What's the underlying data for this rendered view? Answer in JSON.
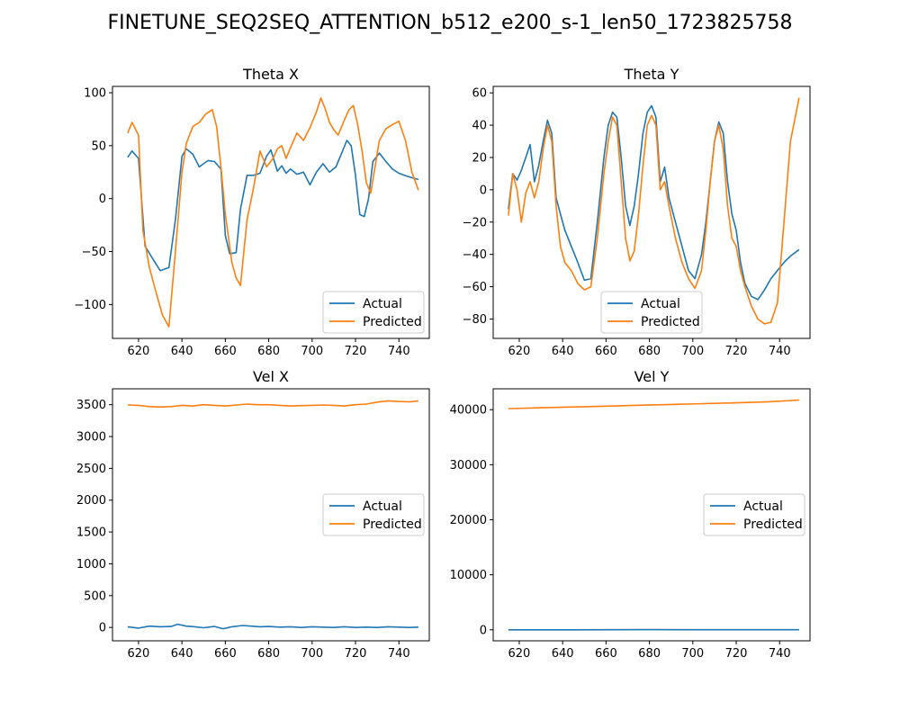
{
  "figure": {
    "title": "FINETUNE_SEQ2SEQ_ATTENTION_b512_e200_s-1_len50_1723825758"
  },
  "colors": {
    "actual": "#1f77b4",
    "predicted": "#ff7f0e"
  },
  "chart_data": [
    {
      "type": "line",
      "title": "Theta X",
      "xlim": [
        608,
        754
      ],
      "ylim": [
        -132,
        106
      ],
      "xticks": [
        620,
        640,
        660,
        680,
        700,
        720,
        740
      ],
      "yticks": [
        -100,
        -50,
        0,
        50,
        100
      ],
      "legend": "bottom-right",
      "series": [
        {
          "name": "Actual",
          "color": "#1f77b4",
          "x": [
            615,
            617,
            620,
            623,
            626,
            630,
            634,
            637,
            640,
            642,
            645,
            648,
            652,
            655,
            658,
            660,
            662,
            665,
            667,
            670,
            673,
            676,
            679,
            681,
            684,
            686,
            688,
            690,
            693,
            696,
            699,
            702,
            705,
            708,
            711,
            714,
            716,
            718,
            720,
            722,
            724,
            726,
            728,
            731,
            734,
            737,
            740,
            744,
            749
          ],
          "y": [
            39,
            45,
            38,
            -45,
            -55,
            -68,
            -65,
            -20,
            40,
            47,
            42,
            30,
            36,
            35,
            28,
            -35,
            -52,
            -51,
            -10,
            22,
            22,
            24,
            40,
            46,
            26,
            31,
            24,
            28,
            23,
            25,
            13,
            25,
            33,
            25,
            30,
            45,
            55,
            50,
            22,
            -15,
            -17,
            0,
            35,
            43,
            35,
            28,
            24,
            21,
            18
          ]
        },
        {
          "name": "Predicted",
          "color": "#ff7f0e",
          "x": [
            615,
            617,
            620,
            622,
            625,
            628,
            631,
            634,
            637,
            640,
            642,
            645,
            648,
            651,
            654,
            656,
            658,
            660,
            663,
            665,
            667,
            670,
            673,
            676,
            679,
            682,
            684,
            686,
            688,
            690,
            693,
            696,
            699,
            702,
            704,
            706,
            708,
            710,
            712,
            715,
            717,
            719,
            721,
            723,
            725,
            727,
            729,
            731,
            734,
            737,
            740,
            743,
            746,
            749
          ],
          "y": [
            62,
            72,
            60,
            -30,
            -65,
            -88,
            -110,
            -121,
            -50,
            25,
            52,
            68,
            72,
            80,
            84,
            68,
            30,
            -15,
            -60,
            -75,
            -82,
            -20,
            10,
            45,
            30,
            38,
            47,
            50,
            38,
            48,
            62,
            55,
            67,
            82,
            95,
            85,
            72,
            65,
            60,
            75,
            84,
            88,
            70,
            45,
            15,
            5,
            30,
            55,
            66,
            70,
            73,
            55,
            25,
            8
          ]
        }
      ]
    },
    {
      "type": "line",
      "title": "Theta Y",
      "xlim": [
        608,
        754
      ],
      "ylim": [
        -92,
        64
      ],
      "xticks": [
        620,
        640,
        660,
        680,
        700,
        720,
        740
      ],
      "yticks": [
        -80,
        -60,
        -40,
        -20,
        0,
        20,
        40,
        60
      ],
      "legend": "bottom-center",
      "series": [
        {
          "name": "Actual",
          "color": "#1f77b4",
          "x": [
            615,
            617,
            619,
            621,
            623,
            625,
            627,
            629,
            631,
            633,
            635,
            637,
            639,
            641,
            644,
            647,
            650,
            653,
            656,
            659,
            661,
            663,
            665,
            667,
            669,
            671,
            673,
            675,
            677,
            679,
            681,
            683,
            685,
            687,
            689,
            692,
            695,
            698,
            701,
            704,
            706,
            708,
            710,
            712,
            714,
            716,
            718,
            720,
            722,
            724,
            727,
            730,
            733,
            736,
            739,
            742,
            745,
            749
          ],
          "y": [
            -12,
            10,
            6,
            12,
            20,
            28,
            5,
            15,
            30,
            43,
            35,
            -5,
            -15,
            -25,
            -35,
            -45,
            -56,
            -55,
            -20,
            20,
            40,
            48,
            45,
            20,
            -10,
            -22,
            -10,
            10,
            35,
            48,
            52,
            45,
            5,
            14,
            -5,
            -20,
            -35,
            -50,
            -55,
            -40,
            -20,
            5,
            30,
            42,
            35,
            5,
            -15,
            -25,
            -45,
            -58,
            -66,
            -68,
            -62,
            -55,
            -50,
            -45,
            -41,
            -37
          ]
        },
        {
          "name": "Predicted",
          "color": "#ff7f0e",
          "x": [
            615,
            617,
            619,
            621,
            623,
            625,
            627,
            629,
            631,
            633,
            635,
            637,
            639,
            641,
            644,
            647,
            650,
            653,
            656,
            659,
            661,
            663,
            665,
            667,
            669,
            671,
            673,
            675,
            677,
            679,
            681,
            683,
            685,
            687,
            689,
            692,
            695,
            698,
            701,
            704,
            706,
            708,
            710,
            712,
            714,
            716,
            718,
            720,
            722,
            724,
            727,
            730,
            733,
            736,
            739,
            742,
            745,
            749
          ],
          "y": [
            -16,
            10,
            0,
            -20,
            -2,
            5,
            -5,
            5,
            25,
            40,
            30,
            -10,
            -35,
            -45,
            -50,
            -58,
            -62,
            -60,
            -30,
            10,
            30,
            45,
            40,
            5,
            -30,
            -44,
            -38,
            -15,
            15,
            40,
            46,
            40,
            0,
            5,
            -10,
            -30,
            -45,
            -55,
            -61,
            -50,
            -25,
            5,
            30,
            40,
            25,
            -10,
            -30,
            -35,
            -50,
            -60,
            -72,
            -80,
            -83,
            -82,
            -70,
            -20,
            30,
            57
          ]
        }
      ]
    },
    {
      "type": "line",
      "title": "Vel X",
      "xlim": [
        608,
        754
      ],
      "ylim": [
        -210,
        3750
      ],
      "xticks": [
        620,
        640,
        660,
        680,
        700,
        720,
        740
      ],
      "yticks": [
        0,
        500,
        1000,
        1500,
        2000,
        2500,
        3000,
        3500
      ],
      "legend": "center-right",
      "series": [
        {
          "name": "Actual",
          "color": "#1f77b4",
          "x": [
            615,
            620,
            625,
            630,
            635,
            638,
            642,
            646,
            650,
            655,
            659,
            663,
            668,
            672,
            676,
            680,
            685,
            690,
            695,
            700,
            705,
            710,
            715,
            720,
            725,
            730,
            735,
            740,
            745,
            749
          ],
          "y": [
            10,
            -10,
            20,
            10,
            15,
            50,
            20,
            10,
            -5,
            15,
            -20,
            10,
            30,
            20,
            10,
            15,
            5,
            10,
            0,
            10,
            5,
            0,
            10,
            0,
            5,
            0,
            10,
            5,
            0,
            5
          ]
        },
        {
          "name": "Predicted",
          "color": "#ff7f0e",
          "x": [
            615,
            620,
            625,
            630,
            635,
            640,
            645,
            650,
            655,
            660,
            665,
            670,
            675,
            680,
            685,
            690,
            695,
            700,
            705,
            710,
            715,
            720,
            725,
            730,
            735,
            740,
            745,
            749
          ],
          "y": [
            3495,
            3490,
            3470,
            3465,
            3470,
            3490,
            3480,
            3500,
            3490,
            3480,
            3495,
            3510,
            3500,
            3500,
            3490,
            3480,
            3485,
            3490,
            3495,
            3490,
            3480,
            3500,
            3510,
            3540,
            3560,
            3550,
            3545,
            3560
          ]
        }
      ]
    },
    {
      "type": "line",
      "title": "Vel Y",
      "xlim": [
        608,
        754
      ],
      "ylim": [
        -2000,
        43800
      ],
      "xticks": [
        620,
        640,
        660,
        680,
        700,
        720,
        740
      ],
      "yticks": [
        0,
        10000,
        20000,
        30000,
        40000
      ],
      "legend": "center-right",
      "series": [
        {
          "name": "Actual",
          "color": "#1f77b4",
          "x": [
            615,
            640,
            660,
            680,
            700,
            720,
            749
          ],
          "y": [
            0,
            0,
            20,
            30,
            20,
            10,
            10
          ]
        },
        {
          "name": "Predicted",
          "color": "#ff7f0e",
          "x": [
            615,
            630,
            645,
            660,
            675,
            690,
            705,
            720,
            735,
            749
          ],
          "y": [
            40200,
            40350,
            40500,
            40650,
            40800,
            40950,
            41100,
            41250,
            41450,
            41750
          ]
        }
      ]
    }
  ]
}
